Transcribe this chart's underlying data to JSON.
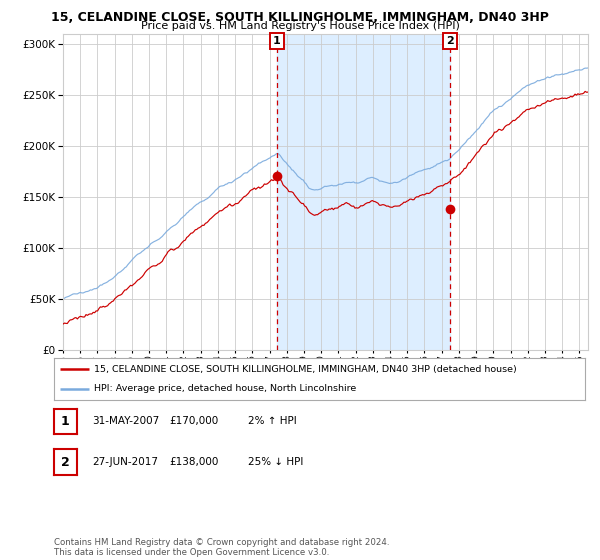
{
  "title": "15, CELANDINE CLOSE, SOUTH KILLINGHOLME, IMMINGHAM, DN40 3HP",
  "subtitle": "Price paid vs. HM Land Registry's House Price Index (HPI)",
  "legend_label_red": "15, CELANDINE CLOSE, SOUTH KILLINGHOLME, IMMINGHAM, DN40 3HP (detached house)",
  "legend_label_blue": "HPI: Average price, detached house, North Lincolnshire",
  "annotation1_date": "31-MAY-2007",
  "annotation1_price": "£170,000",
  "annotation1_hpi": "2% ↑ HPI",
  "annotation2_date": "27-JUN-2017",
  "annotation2_price": "£138,000",
  "annotation2_hpi": "25% ↓ HPI",
  "copyright": "Contains HM Land Registry data © Crown copyright and database right 2024.\nThis data is licensed under the Open Government Licence v3.0.",
  "point1_x": 2007.42,
  "point1_y": 170000,
  "point2_x": 2017.49,
  "point2_y": 138000,
  "shade_x1": 2007.42,
  "shade_x2": 2017.49,
  "ylim": [
    0,
    310000
  ],
  "xlim": [
    1995,
    2025.5
  ],
  "red_color": "#cc0000",
  "blue_color": "#7aaadd",
  "shade_color": "#ddeeff",
  "grid_color": "#cccccc",
  "bg_color": "#ffffff"
}
